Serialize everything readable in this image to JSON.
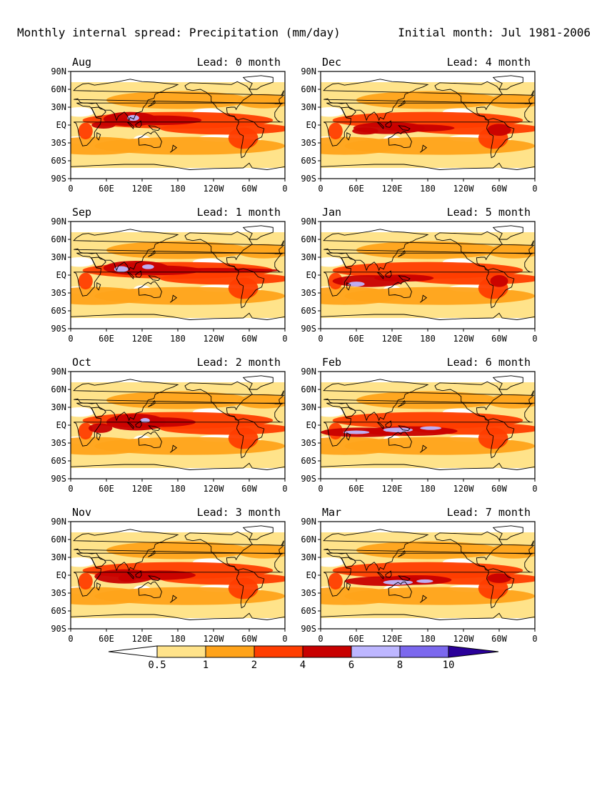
{
  "header": {
    "title": "Monthly internal spread: Precipitation (mm/day)",
    "initial": "Initial month: Jul 1981-2006"
  },
  "axes": {
    "lat_labels": [
      "90N",
      "60N",
      "30N",
      "EQ",
      "30S",
      "60S",
      "90S"
    ],
    "lon_labels": [
      "0",
      "60E",
      "120E",
      "180",
      "120W",
      "60W",
      "0"
    ]
  },
  "panels": [
    {
      "month": "Aug",
      "lead": "Lead: 0 month"
    },
    {
      "month": "Dec",
      "lead": "Lead: 4 month"
    },
    {
      "month": "Sep",
      "lead": "Lead: 1 month"
    },
    {
      "month": "Jan",
      "lead": "Lead: 5 month"
    },
    {
      "month": "Oct",
      "lead": "Lead: 2 month"
    },
    {
      "month": "Feb",
      "lead": "Lead: 6 month"
    },
    {
      "month": "Nov",
      "lead": "Lead: 3 month"
    },
    {
      "month": "Mar",
      "lead": "Lead: 7 month"
    }
  ],
  "colorbar": {
    "labels": [
      "0.5",
      "1",
      "2",
      "4",
      "6",
      "8",
      "10"
    ],
    "colors": [
      "#ffffff",
      "#ffe38a",
      "#ffa31a",
      "#ff3d00",
      "#c80000",
      "#bdb6ff",
      "#7b68ee",
      "#2a0099"
    ]
  },
  "palette": {
    "land_outline": "#000000"
  }
}
